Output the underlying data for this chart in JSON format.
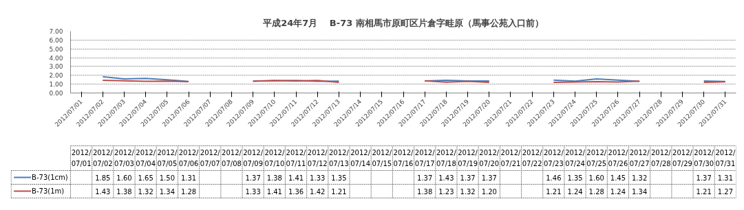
{
  "chart_data": {
    "type": "line",
    "title": "平成24年7月　 B-73 南相馬市原町区片倉字畦原（馬事公苑入口前）",
    "categories": [
      "2012/07/01",
      "2012/07/02",
      "2012/07/03",
      "2012/07/04",
      "2012/07/05",
      "2012/07/06",
      "2012/07/07",
      "2012/07/08",
      "2012/07/09",
      "2012/07/10",
      "2012/07/11",
      "2012/07/12",
      "2012/07/13",
      "2012/07/14",
      "2012/07/15",
      "2012/07/16",
      "2012/07/17",
      "2012/07/18",
      "2012/07/19",
      "2012/07/20",
      "2012/07/21",
      "2012/07/22",
      "2012/07/23",
      "2012/07/24",
      "2012/07/25",
      "2012/07/26",
      "2012/07/27",
      "2012/07/28",
      "2012/07/29",
      "2012/07/30",
      "2012/07/31"
    ],
    "series": [
      {
        "name": "B-73(1cm)",
        "color": "#4a7ebb",
        "values": [
          null,
          1.85,
          1.6,
          1.65,
          1.5,
          1.31,
          null,
          null,
          1.37,
          1.38,
          1.41,
          1.33,
          1.35,
          null,
          null,
          null,
          1.37,
          1.43,
          1.37,
          1.37,
          null,
          null,
          1.46,
          1.35,
          1.6,
          1.45,
          1.32,
          null,
          null,
          1.37,
          1.31
        ],
        "value_labels": [
          null,
          "1.85",
          "1.60",
          "1.65",
          "1.50",
          "1.31",
          null,
          null,
          "1.37",
          "1.38",
          "1.41",
          "1.33",
          "1.35",
          null,
          null,
          null,
          "1.37",
          "1.43",
          "1.37",
          "1.37",
          null,
          null,
          "1.46",
          "1.35",
          "1.60",
          "1.45",
          "1.32",
          null,
          null,
          "1.37",
          "1.31"
        ]
      },
      {
        "name": "B-73(1m)",
        "color": "#be4b48",
        "values": [
          null,
          1.43,
          1.38,
          1.32,
          1.34,
          1.28,
          null,
          null,
          1.33,
          1.41,
          1.36,
          1.42,
          1.21,
          null,
          null,
          null,
          1.38,
          1.23,
          1.32,
          1.2,
          null,
          null,
          1.21,
          1.24,
          1.28,
          1.24,
          1.34,
          null,
          null,
          1.21,
          1.27
        ],
        "value_labels": [
          null,
          "1.43",
          "1.38",
          "1.32",
          "1.34",
          "1.28",
          null,
          null,
          "1.33",
          "1.41",
          "1.36",
          "1.42",
          "1.21",
          null,
          null,
          null,
          "1.38",
          "1.23",
          "1.32",
          "1.20",
          null,
          null,
          "1.21",
          "1.24",
          "1.28",
          "1.24",
          "1.34",
          null,
          null,
          "1.21",
          "1.27"
        ]
      }
    ],
    "ylim": [
      0,
      7
    ],
    "yticks": [
      {
        "value": 0,
        "label": "0.00"
      },
      {
        "value": 1,
        "label": "1.00"
      },
      {
        "value": 2,
        "label": "2.00"
      },
      {
        "value": 3,
        "label": "3.00"
      },
      {
        "value": 4,
        "label": "4.00"
      },
      {
        "value": 5,
        "label": "5.00"
      },
      {
        "value": 6,
        "label": "6.00"
      },
      {
        "value": 7,
        "label": "7.00"
      }
    ],
    "grid": "y",
    "legend": "bottom",
    "marker": "none",
    "line_style": "solid"
  }
}
